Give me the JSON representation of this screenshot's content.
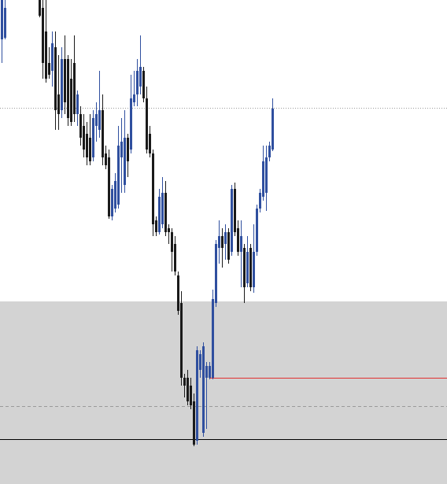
{
  "chart_data": {
    "type": "candlestick",
    "x": [
      0,
      1,
      12,
      13,
      14,
      15,
      16,
      17,
      18,
      19,
      20,
      21,
      22,
      23,
      24,
      25,
      26,
      27,
      28,
      29,
      30,
      31,
      32,
      33,
      34,
      35,
      36,
      37,
      38,
      39,
      40,
      41,
      42,
      43,
      44,
      45,
      46,
      47,
      48,
      49,
      50,
      51,
      52,
      53,
      54,
      55,
      56,
      57,
      58,
      59,
      60,
      61,
      62,
      63,
      64,
      65,
      66,
      67,
      68,
      69,
      70,
      71,
      72,
      73,
      74,
      75,
      76,
      77,
      78,
      79,
      80,
      81,
      82,
      83,
      84,
      85,
      86
    ],
    "open": [
      565,
      567,
      615,
      605,
      575,
      535,
      525,
      555,
      495,
      475,
      540,
      540,
      515,
      535,
      470,
      470,
      455,
      445,
      440,
      415,
      455,
      450,
      475,
      420,
      415,
      340,
      350,
      355,
      415,
      380,
      440,
      425,
      485,
      495,
      505,
      525,
      490,
      445,
      420,
      335,
      320,
      330,
      370,
      325,
      320,
      305,
      265,
      230,
      135,
      135,
      125,
      105,
      55,
      145,
      65,
      135,
      135,
      135,
      230,
      300,
      315,
      305,
      320,
      295,
      375,
      325,
      295,
      300,
      255,
      300,
      250,
      295,
      350,
      365,
      370,
      415,
      425
    ],
    "high": [
      615,
      615,
      615,
      615,
      615,
      555,
      575,
      575,
      545,
      555,
      570,
      545,
      540,
      570,
      500,
      480,
      470,
      460,
      470,
      475,
      485,
      525,
      495,
      430,
      425,
      380,
      395,
      455,
      465,
      475,
      445,
      520,
      525,
      540,
      570,
      530,
      505,
      455,
      425,
      340,
      375,
      390,
      385,
      330,
      325,
      315,
      270,
      245,
      140,
      145,
      135,
      115,
      175,
      170,
      180,
      155,
      155,
      247,
      310,
      335,
      325,
      330,
      325,
      380,
      383,
      335,
      335,
      305,
      315,
      305,
      330,
      355,
      375,
      430,
      430,
      435,
      490
    ],
    "low": [
      535,
      565,
      593,
      515,
      510,
      515,
      505,
      450,
      450,
      465,
      470,
      455,
      455,
      460,
      455,
      430,
      415,
      405,
      405,
      410,
      435,
      440,
      405,
      400,
      337,
      335,
      345,
      350,
      370,
      370,
      390,
      420,
      480,
      480,
      495,
      485,
      420,
      415,
      315,
      315,
      317,
      325,
      315,
      305,
      270,
      265,
      215,
      125,
      110,
      100,
      95,
      48,
      50,
      135,
      60,
      70,
      133,
      133,
      225,
      280,
      275,
      285,
      280,
      290,
      315,
      290,
      250,
      230,
      250,
      245,
      243,
      290,
      345,
      360,
      347,
      410,
      423
    ],
    "close": [
      615,
      605,
      595,
      535,
      515,
      520,
      560,
      475,
      470,
      540,
      485,
      465,
      460,
      470,
      495,
      440,
      425,
      415,
      410,
      465,
      470,
      475,
      415,
      405,
      340,
      375,
      385,
      430,
      435,
      440,
      410,
      490,
      495,
      525,
      530,
      490,
      425,
      420,
      330,
      320,
      365,
      370,
      320,
      320,
      295,
      270,
      220,
      135,
      125,
      105,
      100,
      50,
      170,
      165,
      175,
      150,
      150,
      235,
      305,
      315,
      300,
      320,
      285,
      375,
      320,
      295,
      315,
      250,
      295,
      250,
      295,
      350,
      370,
      410,
      415,
      430,
      477
    ],
    "xlim": [
      -0.5,
      141.5
    ],
    "ylim": [
      0,
      615
    ],
    "up_color": "#2f4f9f",
    "down_color": "#1a1a1a",
    "zone": {
      "from": 0,
      "to": 232,
      "color": "#d3d3d3"
    },
    "lines": [
      {
        "value": 478,
        "color": "#9a9a9a",
        "dash": "1,2"
      },
      {
        "value": 135,
        "color": "#e03030",
        "dash": "none",
        "x_start": 66
      },
      {
        "value": 99,
        "color": "#9a9a9a",
        "dash": "4,3"
      },
      {
        "value": 57,
        "color": "#000000",
        "dash": "none"
      }
    ]
  }
}
